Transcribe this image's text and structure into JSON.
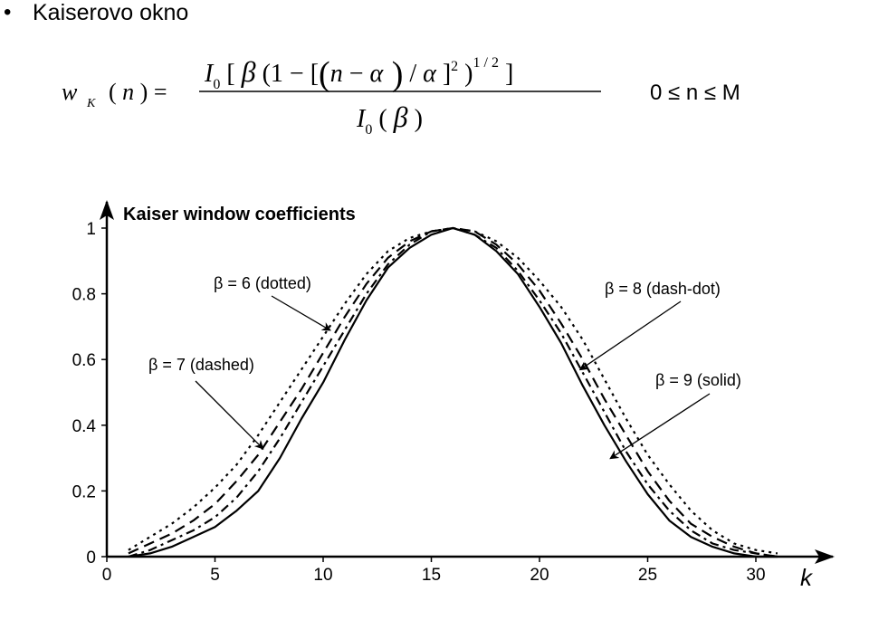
{
  "slide": {
    "bullet_glyph": "•",
    "title": "Kaiserovo okno"
  },
  "formula": {
    "lhs": "w K ( n ) =",
    "numerator": "I 0 [ β (1 − [ (n − α ) / α ] 2 ) 1/2 ]",
    "denominator": "I 0 ( β )",
    "range": "0 ≤ n ≤ M"
  },
  "chart_data": {
    "type": "line",
    "title": "Kaiser window coefficients",
    "xlabel": "k",
    "ylabel": "",
    "xlim": [
      0,
      33
    ],
    "ylim": [
      0,
      1.05
    ],
    "xticks": [
      "0",
      "5",
      "10",
      "15",
      "20",
      "25",
      "30"
    ],
    "yticks": [
      "0",
      "0.2",
      "0.4",
      "0.6",
      "0.8",
      "1"
    ],
    "x": [
      1,
      2,
      3,
      4,
      5,
      6,
      7,
      8,
      9,
      10,
      11,
      12,
      13,
      14,
      15,
      16,
      17,
      18,
      19,
      20,
      21,
      22,
      23,
      24,
      25,
      26,
      27,
      28,
      29,
      30,
      31
    ],
    "series": [
      {
        "name": "β = 6 (dotted)",
        "style": "dotted",
        "values": [
          0.02,
          0.06,
          0.1,
          0.15,
          0.21,
          0.28,
          0.37,
          0.47,
          0.57,
          0.67,
          0.77,
          0.86,
          0.93,
          0.97,
          0.99,
          1.0,
          0.99,
          0.96,
          0.91,
          0.84,
          0.76,
          0.66,
          0.54,
          0.42,
          0.31,
          0.22,
          0.14,
          0.08,
          0.04,
          0.02,
          0.01
        ]
      },
      {
        "name": "β = 7 (dashed)",
        "style": "dashed",
        "values": [
          0.01,
          0.04,
          0.07,
          0.11,
          0.16,
          0.23,
          0.31,
          0.41,
          0.51,
          0.62,
          0.73,
          0.83,
          0.91,
          0.96,
          0.99,
          1.0,
          0.99,
          0.95,
          0.89,
          0.81,
          0.71,
          0.6,
          0.48,
          0.37,
          0.26,
          0.17,
          0.1,
          0.06,
          0.03,
          0.01,
          0.0
        ]
      },
      {
        "name": "β = 8 (dash-dot)",
        "style": "dash-dot",
        "values": [
          0.0,
          0.02,
          0.05,
          0.08,
          0.12,
          0.18,
          0.26,
          0.36,
          0.47,
          0.58,
          0.69,
          0.8,
          0.89,
          0.95,
          0.99,
          1.0,
          0.98,
          0.94,
          0.87,
          0.78,
          0.68,
          0.56,
          0.44,
          0.32,
          0.22,
          0.14,
          0.08,
          0.04,
          0.02,
          0.01,
          0.0
        ]
      },
      {
        "name": "β = 9 (solid)",
        "style": "solid",
        "values": [
          0.0,
          0.01,
          0.03,
          0.06,
          0.09,
          0.14,
          0.2,
          0.3,
          0.42,
          0.53,
          0.66,
          0.78,
          0.88,
          0.94,
          0.98,
          1.0,
          0.98,
          0.93,
          0.86,
          0.76,
          0.65,
          0.52,
          0.4,
          0.29,
          0.19,
          0.11,
          0.06,
          0.03,
          0.01,
          0.0,
          0.0
        ]
      }
    ],
    "annotations": [
      {
        "text": "β = 6 (dotted)",
        "target_x": 10.3,
        "target_y": 0.69
      },
      {
        "text": "β = 7 (dashed)",
        "target_x": 7.2,
        "target_y": 0.33
      },
      {
        "text": "β = 8 (dash-dot)",
        "target_x": 21.9,
        "target_y": 0.57
      },
      {
        "text": "β = 9 (solid)",
        "target_x": 23.3,
        "target_y": 0.3
      }
    ],
    "grid": false,
    "legend": "none"
  }
}
